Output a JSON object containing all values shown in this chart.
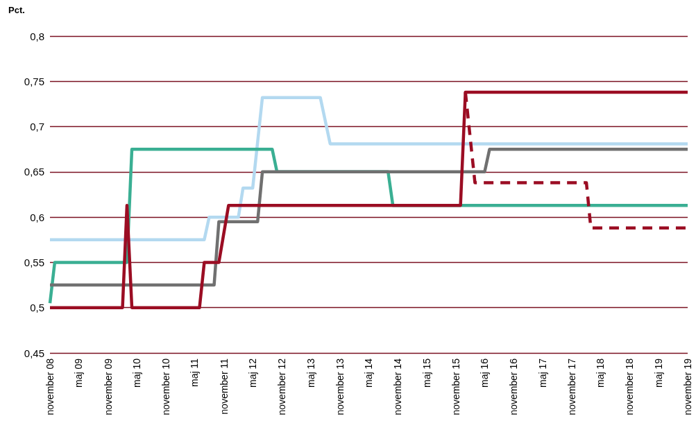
{
  "chart_data": {
    "type": "line",
    "ylabel": "Pct.",
    "ylim": [
      0.45,
      0.8
    ],
    "yticks": [
      {
        "value": 0.45,
        "label": "0,45"
      },
      {
        "value": 0.5,
        "label": "0,5"
      },
      {
        "value": 0.55,
        "label": "0,55"
      },
      {
        "value": 0.6,
        "label": "0,6"
      },
      {
        "value": 0.65,
        "label": "0,65"
      },
      {
        "value": 0.7,
        "label": "0,7"
      },
      {
        "value": 0.75,
        "label": "0,75"
      },
      {
        "value": 0.8,
        "label": "0,8"
      }
    ],
    "xlim": [
      "2008-11",
      "2019-11"
    ],
    "xticks": [
      {
        "value": "2008-11",
        "label": "november 08"
      },
      {
        "value": "2009-05",
        "label": "maj 09"
      },
      {
        "value": "2009-11",
        "label": "november 09"
      },
      {
        "value": "2010-05",
        "label": "maj 10"
      },
      {
        "value": "2010-11",
        "label": "november 10"
      },
      {
        "value": "2011-05",
        "label": "maj 11"
      },
      {
        "value": "2011-11",
        "label": "november 11"
      },
      {
        "value": "2012-05",
        "label": "maj 12"
      },
      {
        "value": "2012-11",
        "label": "november 12"
      },
      {
        "value": "2013-05",
        "label": "maj 13"
      },
      {
        "value": "2013-11",
        "label": "november 13"
      },
      {
        "value": "2014-05",
        "label": "maj 14"
      },
      {
        "value": "2014-11",
        "label": "november 14"
      },
      {
        "value": "2015-05",
        "label": "maj 15"
      },
      {
        "value": "2015-11",
        "label": "november 15"
      },
      {
        "value": "2016-05",
        "label": "maj 16"
      },
      {
        "value": "2016-11",
        "label": "november 16"
      },
      {
        "value": "2017-05",
        "label": "maj 17"
      },
      {
        "value": "2017-11",
        "label": "november 17"
      },
      {
        "value": "2018-05",
        "label": "maj 18"
      },
      {
        "value": "2018-11",
        "label": "november 18"
      },
      {
        "value": "2019-05",
        "label": "maj 19"
      },
      {
        "value": "2019-11",
        "label": "november 19"
      }
    ],
    "grid": "y",
    "marker": "none",
    "line_style": "solid",
    "series": [
      {
        "color": "#b3d9f0",
        "x": [
          "2008-11",
          "2011-07",
          "2011-08",
          "2012-02",
          "2012-03",
          "2012-05",
          "2012-07",
          "2013-07",
          "2013-09",
          "2019-11"
        ],
        "values": [
          0.575,
          0.575,
          0.6,
          0.6,
          0.632,
          0.632,
          0.732,
          0.732,
          0.681,
          0.681
        ]
      },
      {
        "color": "#3aaf93",
        "x": [
          "2008-11",
          "2008-12",
          "2010-03",
          "2010-04",
          "2012-09",
          "2012-10",
          "2014-09",
          "2014-10",
          "2019-11"
        ],
        "values": [
          0.505,
          0.55,
          0.55,
          0.675,
          0.675,
          0.65,
          0.65,
          0.613,
          0.613
        ]
      },
      {
        "color": "#707070",
        "x": [
          "2008-11",
          "2011-09",
          "2011-10",
          "2012-06",
          "2012-07",
          "2016-05",
          "2016-06",
          "2019-11"
        ],
        "values": [
          0.525,
          0.525,
          0.595,
          0.595,
          0.65,
          0.65,
          0.675,
          0.675
        ]
      },
      {
        "color": "#9b0d23",
        "line_style": "dashed",
        "x": [
          "2016-01",
          "2016-03",
          "2018-02",
          "2018-03",
          "2019-11"
        ],
        "values": [
          0.738,
          0.638,
          0.638,
          0.588,
          0.588
        ]
      },
      {
        "color": "#9b0d23",
        "x": [
          "2008-11",
          "2010-02",
          "2010-03",
          "2010-04",
          "2011-06",
          "2011-07",
          "2011-10",
          "2011-12",
          "2015-12",
          "2016-01",
          "2019-11"
        ],
        "values": [
          0.5,
          0.5,
          0.613,
          0.5,
          0.5,
          0.55,
          0.55,
          0.613,
          0.613,
          0.738,
          0.738
        ]
      }
    ]
  }
}
